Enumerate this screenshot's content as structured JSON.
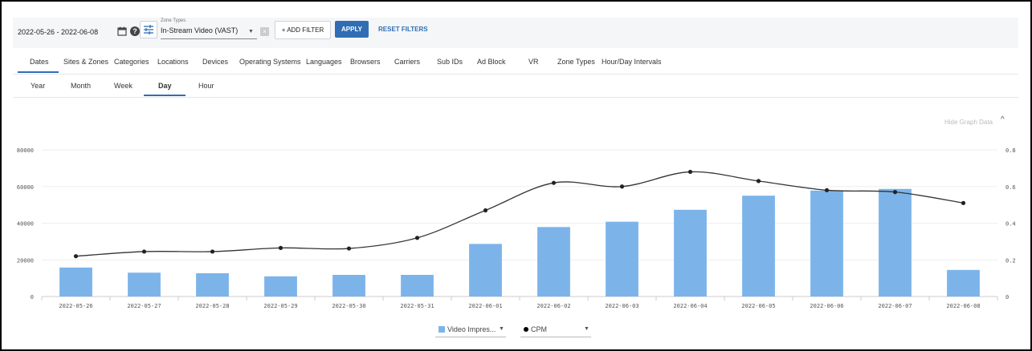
{
  "filters": {
    "date_range": "2022-05-26 - 2022-06-08",
    "help_glyph": "?",
    "zone_types_label": "Zone Types",
    "zone_types_value": "In-Stream Video (VAST)",
    "clear_glyph": "×",
    "add_filter_label": "+ ADD FILTER",
    "apply_label": "APPLY",
    "reset_label": "RESET FILTERS"
  },
  "report_tabs": [
    "Dates",
    "Sites & Zones",
    "Categories",
    "Locations",
    "Devices",
    "Operating Systems",
    "Languages",
    "Browsers",
    "Carriers",
    "Sub IDs",
    "Ad Block",
    "VR",
    "Zone Types",
    "Hour/Day Intervals"
  ],
  "active_report_tab": "Dates",
  "granularity_tabs": [
    "Year",
    "Month",
    "Week",
    "Day",
    "Hour"
  ],
  "active_granularity_tab": "Day",
  "graph_toggle": {
    "label": "Hide Graph Data",
    "icon": "chevron-up-icon"
  },
  "colors": {
    "accent": "#2f6eb5",
    "bar": "#7cb4ea",
    "line": "#333333"
  },
  "chart_data": {
    "type": "bar",
    "categories": [
      "2022-05-26",
      "2022-05-27",
      "2022-05-28",
      "2022-05-29",
      "2022-05-30",
      "2022-05-31",
      "2022-06-01",
      "2022-06-02",
      "2022-06-03",
      "2022-06-04",
      "2022-06-05",
      "2022-06-06",
      "2022-06-07",
      "2022-06-08"
    ],
    "series": [
      {
        "name": "Video Impres...",
        "type": "bar",
        "axis": "left",
        "values": [
          15800,
          13000,
          12700,
          11000,
          11800,
          11800,
          28700,
          37900,
          40800,
          47300,
          55000,
          57800,
          58700,
          14500
        ]
      },
      {
        "name": "CPM",
        "type": "line",
        "axis": "right",
        "values": [
          0.22,
          0.245,
          0.245,
          0.265,
          0.262,
          0.32,
          0.47,
          0.62,
          0.6,
          0.68,
          0.63,
          0.58,
          0.57,
          0.51
        ]
      }
    ],
    "y_left": {
      "ylim": [
        0,
        80000
      ],
      "ticks": [
        "0",
        "20000",
        "40000",
        "60000",
        "80000"
      ]
    },
    "y_right": {
      "ylim": [
        0,
        0.8
      ],
      "ticks": [
        "0",
        "0.2",
        "0.4",
        "0.6",
        "0.8"
      ]
    },
    "grid": true,
    "legend_position": "bottom-center"
  }
}
